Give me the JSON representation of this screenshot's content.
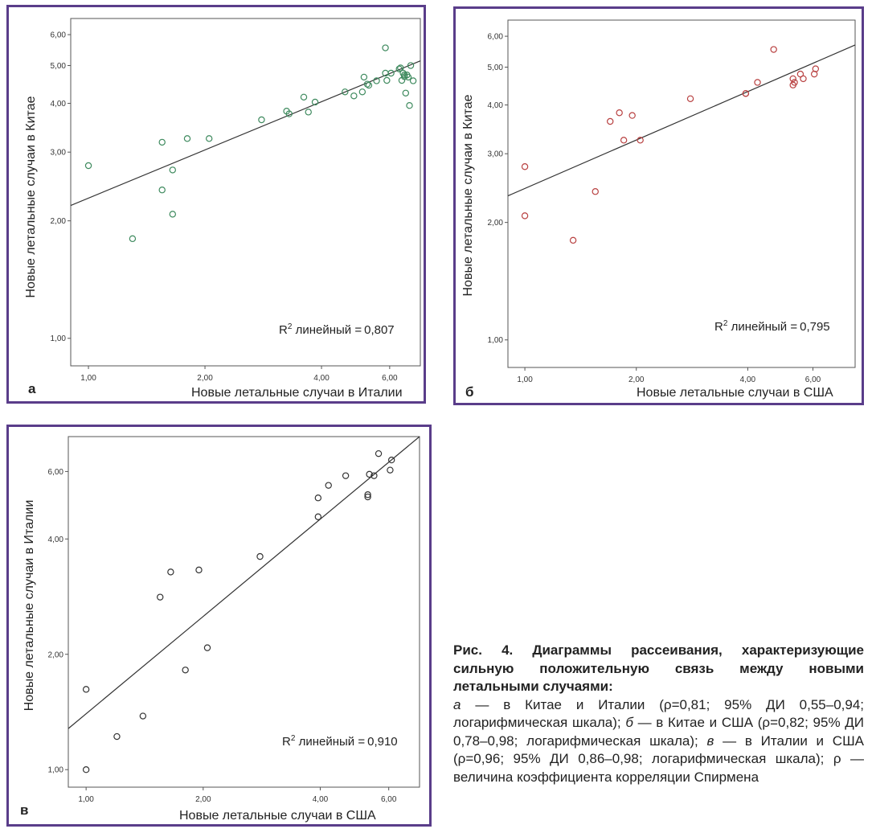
{
  "charts": {
    "a": {
      "letter": "а",
      "xlabel": "Новые летальные случаи в Италии",
      "ylabel": "Новые летальные случаи в Китае",
      "r2_label": "линейный =",
      "r2_value": "0,807",
      "xticks": [
        "1,00",
        "2,00",
        "4,00",
        "6,00"
      ],
      "yticks": [
        "1,00",
        "2,00",
        "3,00",
        "4,00",
        "5,00",
        "6,00"
      ]
    },
    "b": {
      "letter": "б",
      "xlabel": "Новые летальные случаи в США",
      "ylabel": "Новые летальные случаи в Китае",
      "r2_label": "линейный =",
      "r2_value": "0,795",
      "xticks": [
        "1,00",
        "2,00",
        "4,00",
        "6,00"
      ],
      "yticks": [
        "1,00",
        "2,00",
        "3,00",
        "4,00",
        "5,00",
        "6,00"
      ]
    },
    "c": {
      "letter": "в",
      "xlabel": "Новые летальные случаи в США",
      "ylabel": "Новые летальные случаи в Италии",
      "r2_label": "линейный =",
      "r2_value": "0,910",
      "xticks": [
        "1,00",
        "2,00",
        "4,00",
        "6,00"
      ],
      "yticks": [
        "1,00",
        "2,00",
        "4,00",
        "6,00"
      ]
    }
  },
  "chart_data": [
    {
      "type": "scatter",
      "xscale": "log",
      "yscale": "log",
      "xlim": [
        0.9,
        7.2
      ],
      "ylim": [
        0.85,
        6.6
      ],
      "x": [
        1.0,
        1.3,
        1.55,
        1.65,
        1.65,
        1.55,
        1.8,
        2.05,
        2.8,
        3.25,
        3.3,
        3.6,
        3.7,
        3.85,
        4.6,
        4.85,
        5.1,
        5.15,
        5.25,
        5.3,
        5.55,
        5.85,
        5.9,
        5.85,
        6.05,
        6.35,
        6.4,
        6.45,
        6.55,
        6.5,
        6.55,
        6.65,
        6.7,
        6.8,
        6.6,
        6.75,
        6.9
      ],
      "y": [
        2.77,
        1.8,
        2.4,
        2.08,
        2.7,
        3.18,
        3.25,
        3.25,
        3.63,
        3.82,
        3.76,
        4.15,
        3.8,
        4.03,
        4.28,
        4.18,
        4.28,
        4.67,
        4.48,
        4.45,
        4.57,
        5.55,
        4.58,
        4.78,
        4.78,
        4.9,
        4.93,
        4.58,
        4.68,
        4.78,
        4.73,
        4.73,
        4.67,
        5.0,
        4.25,
        3.95,
        4.57
      ],
      "fit": {
        "x": [
          0.9,
          7.2
        ],
        "y": [
          2.19,
          5.14
        ]
      },
      "color": "#3e8a5e"
    },
    {
      "type": "scatter",
      "xscale": "log",
      "yscale": "log",
      "xlim": [
        0.9,
        7.8
      ],
      "ylim": [
        0.85,
        6.6
      ],
      "x": [
        1.0,
        1.0,
        1.35,
        1.55,
        1.7,
        1.8,
        1.85,
        1.95,
        2.05,
        2.8,
        3.95,
        3.95,
        4.25,
        4.7,
        5.3,
        5.3,
        5.35,
        5.55,
        5.65,
        6.05,
        6.1
      ],
      "y": [
        2.78,
        2.08,
        1.8,
        2.4,
        3.63,
        3.82,
        3.25,
        3.76,
        3.25,
        4.15,
        4.28,
        4.28,
        4.57,
        5.55,
        4.67,
        4.5,
        4.57,
        4.8,
        4.67,
        4.8,
        4.95
      ],
      "fit": {
        "x": [
          0.9,
          7.8
        ],
        "y": [
          2.34,
          5.7
        ]
      },
      "color": "#b84040"
    },
    {
      "type": "scatter",
      "xscale": "log",
      "yscale": "log",
      "xlim": [
        0.9,
        7.2
      ],
      "ylim": [
        0.9,
        7.4
      ],
      "x": [
        1.0,
        1.0,
        1.2,
        1.4,
        1.55,
        1.65,
        1.8,
        1.95,
        2.05,
        2.8,
        3.95,
        3.95,
        4.2,
        4.65,
        5.3,
        5.3,
        5.35,
        5.5,
        5.65,
        6.05,
        6.1
      ],
      "y": [
        1.0,
        1.62,
        1.22,
        1.38,
        2.82,
        3.28,
        1.82,
        3.32,
        2.08,
        3.6,
        4.57,
        5.12,
        5.52,
        5.85,
        5.22,
        5.15,
        5.9,
        5.85,
        6.68,
        6.05,
        6.43
      ],
      "fit": {
        "x": [
          0.9,
          7.2
        ],
        "y": [
          1.28,
          7.4
        ]
      },
      "color": "#333333"
    }
  ],
  "caption": {
    "title": "Рис. 4. Диаграммы рассеивания, характеризующие сильную положительную связь между новыми летальными случаями:",
    "a_letter": "а",
    "a_text": " — в Китае и Италии (ρ=0,81; 95% ДИ 0,55–0,94; логарифмическая шкала); ",
    "b_letter": "б",
    "b_text": " — в Китае и США (ρ=0,82; 95% ДИ 0,78–0,98; логарифмическая шкала); ",
    "c_letter": "в",
    "c_text": " — в Италии и США (ρ=0,96; 95% ДИ 0,86–0,98; логарифмическая шкала); ρ — величина коэффициента корреляции Спирмена"
  }
}
